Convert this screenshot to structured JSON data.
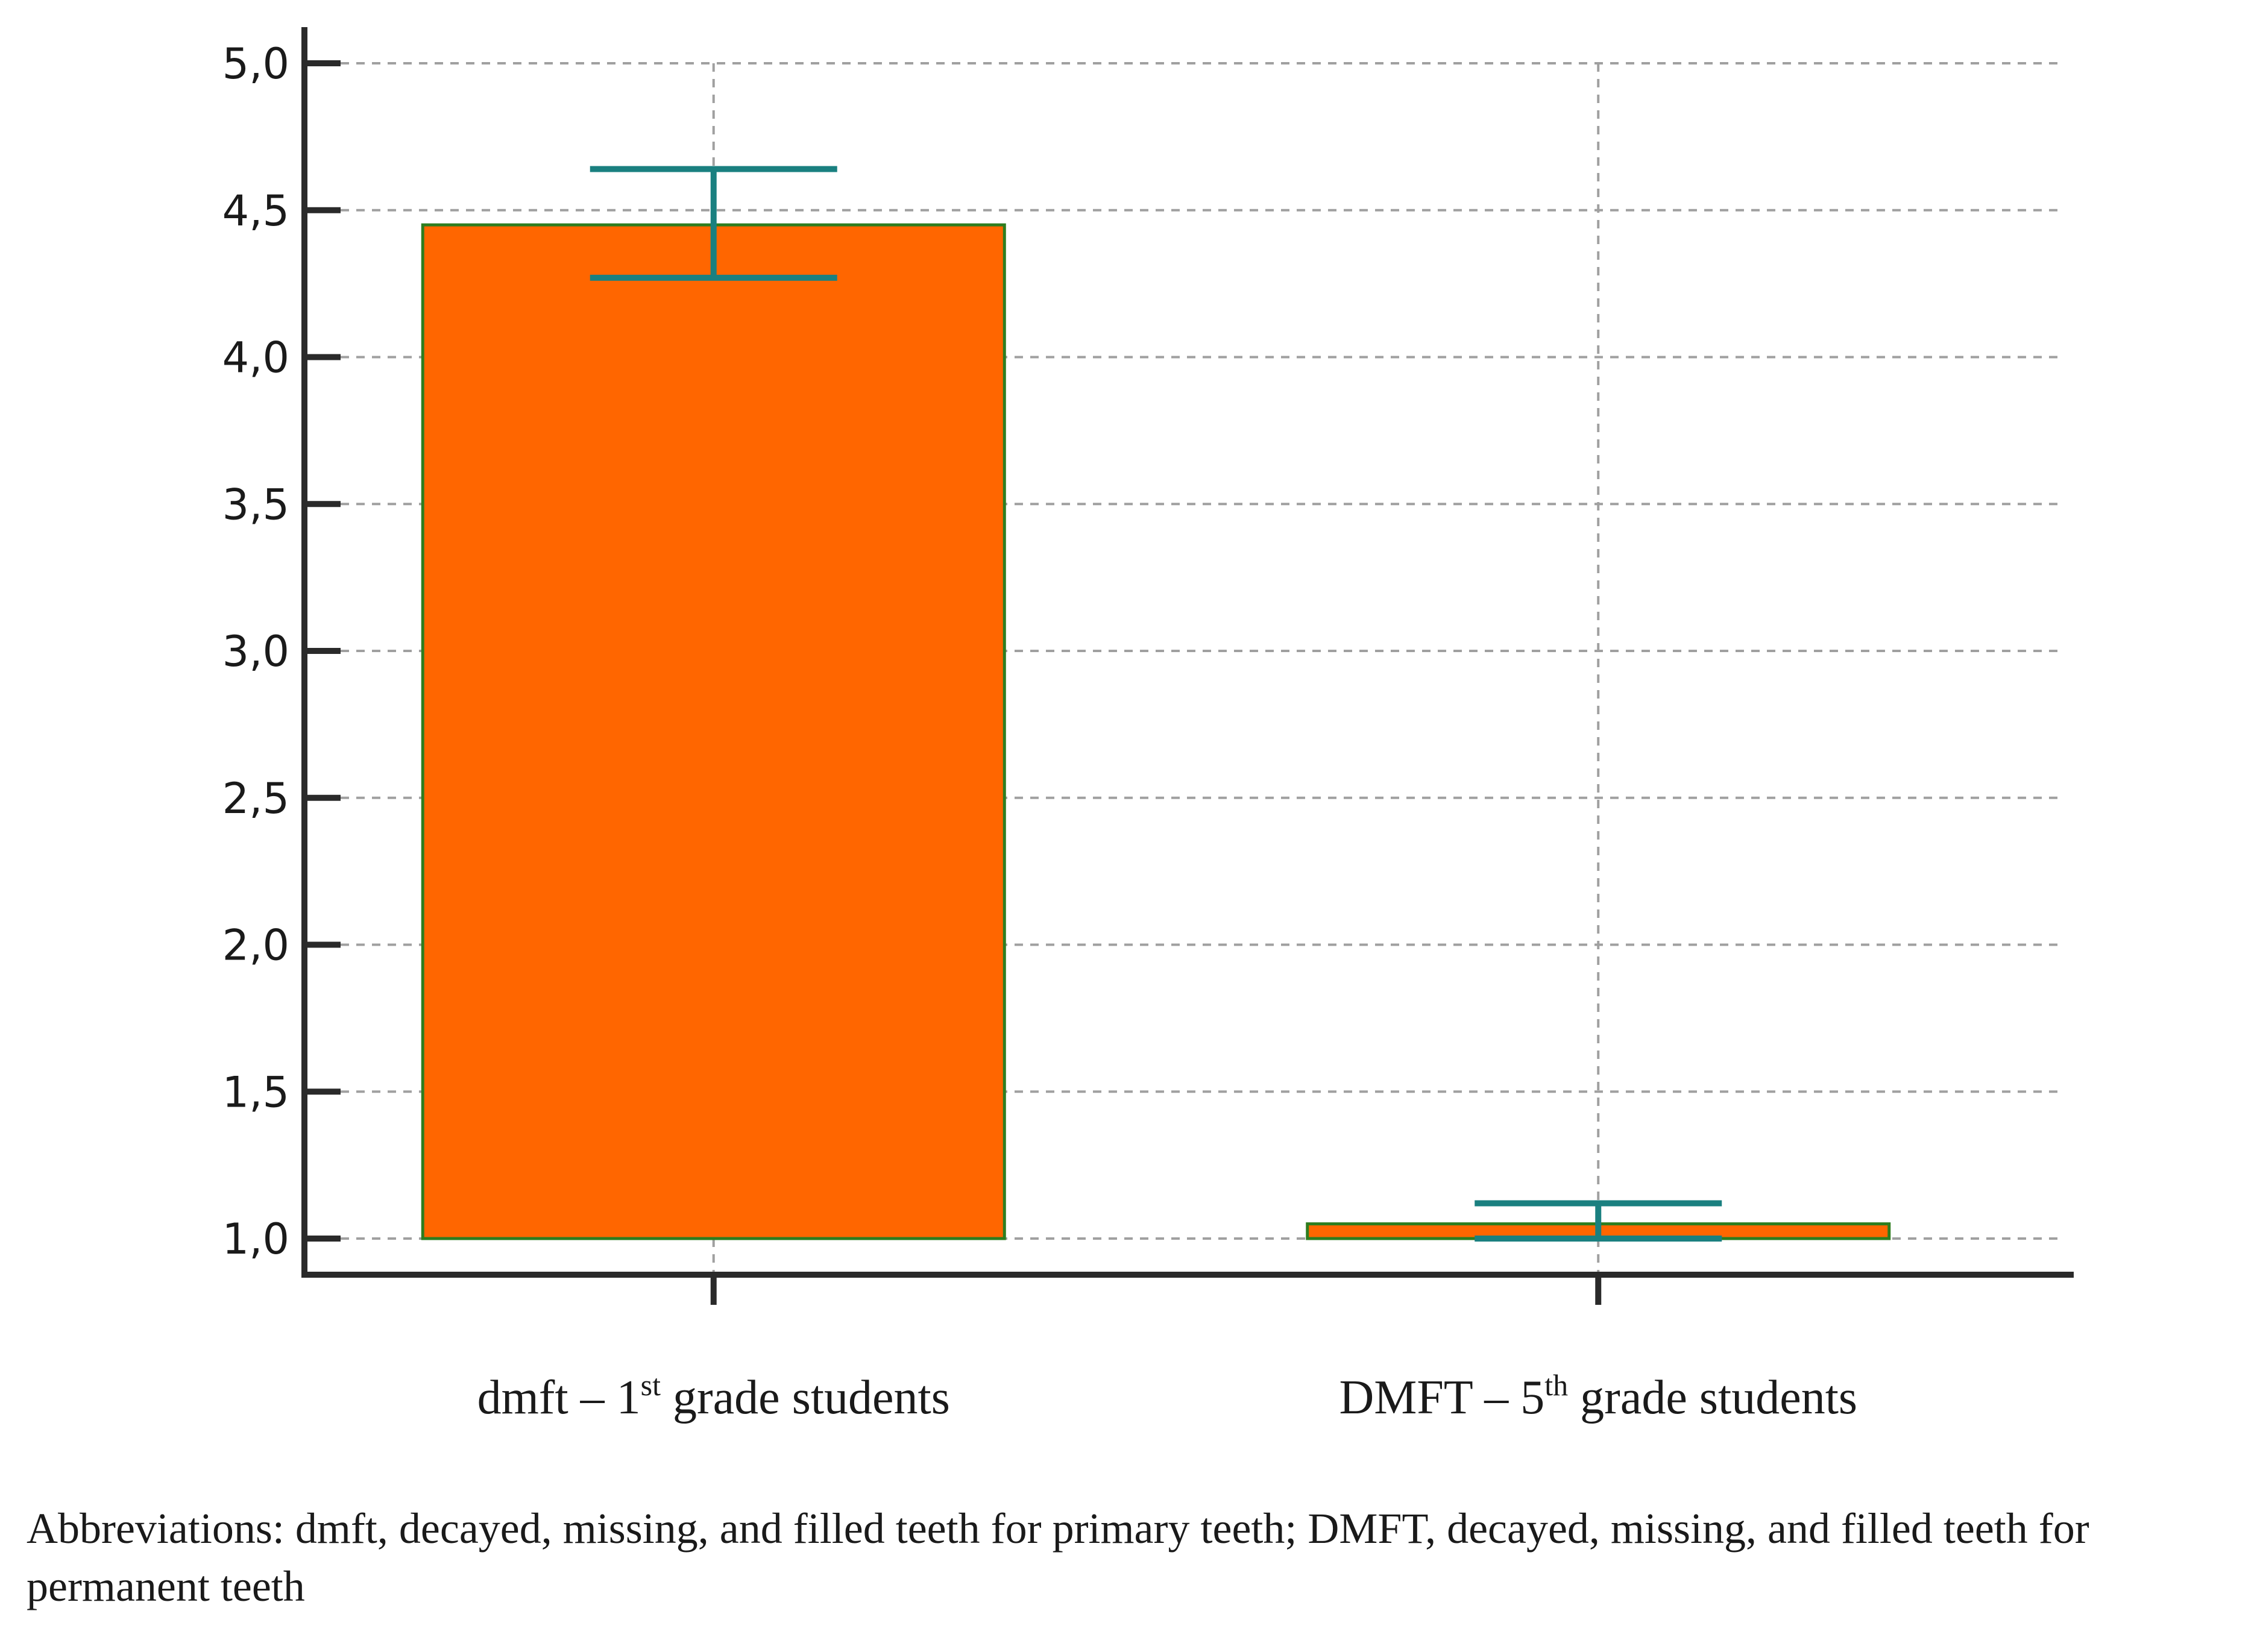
{
  "chart_data": {
    "type": "bar",
    "categories": [
      {
        "pre": "dmft – 1",
        "sup": "st",
        "post": " grade students"
      },
      {
        "pre": "DMFT – 5",
        "sup": "th",
        "post": " grade students"
      }
    ],
    "values": [
      4.45,
      1.05
    ],
    "error_low": [
      4.27,
      1.0
    ],
    "error_high": [
      4.64,
      1.12
    ],
    "baseline": 1.0,
    "ylim": [
      0.88,
      5.12
    ],
    "yticks": [
      1.0,
      1.5,
      2.0,
      2.5,
      3.0,
      3.5,
      4.0,
      4.5,
      5.0
    ],
    "ytick_labels": [
      "1,0",
      "1,5",
      "2,0",
      "2,5",
      "3,0",
      "3,5",
      "4,0",
      "4,5",
      "5,0"
    ],
    "grid": true,
    "colors": {
      "bar_fill": "#ff6600",
      "bar_edge": "#2e7d1f",
      "error_bar": "#1a8080",
      "axis": "#2a2a2a",
      "grid": "#a0a0a0"
    }
  },
  "caption": "Abbreviations: dmft, decayed, missing, and filled teeth for primary teeth; DMFT, decayed, missing, and filled teeth for permanent teeth"
}
